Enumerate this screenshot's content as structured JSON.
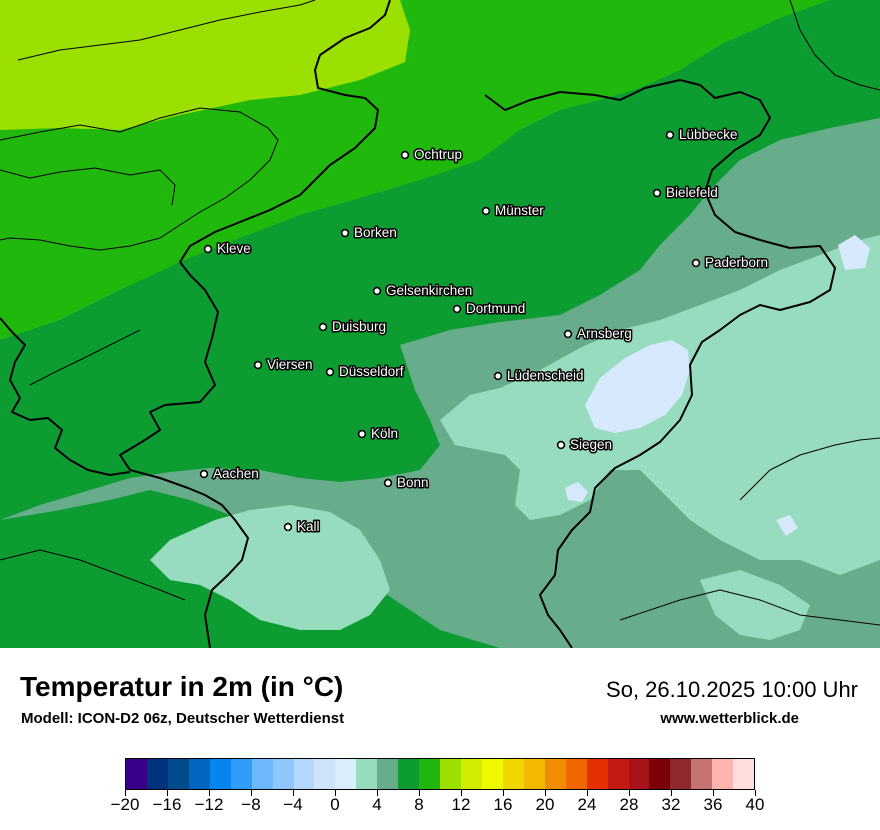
{
  "map": {
    "cities": [
      {
        "name": "Lübbecke"
      },
      {
        "name": "Ochtrup"
      },
      {
        "name": "Bielefeld"
      },
      {
        "name": "Münster"
      },
      {
        "name": "Borken"
      },
      {
        "name": "Kleve"
      },
      {
        "name": "Paderborn"
      },
      {
        "name": "Gelsenkirchen"
      },
      {
        "name": "Dortmund"
      },
      {
        "name": "Duisburg"
      },
      {
        "name": "Arnsberg"
      },
      {
        "name": "Viersen"
      },
      {
        "name": "Düsseldorf"
      },
      {
        "name": "Lüdenscheid"
      },
      {
        "name": "Köln"
      },
      {
        "name": "Siegen"
      },
      {
        "name": "Aachen"
      },
      {
        "name": "Bonn"
      },
      {
        "name": "Kall"
      }
    ],
    "colors": {
      "t_2_4": "#98dcbf",
      "t_4_6": "#68ad8b",
      "t_6_8": "#0c9c32",
      "t_8_10": "#21b80e",
      "t_10_12": "#9be000",
      "t_0_2": "#d6e9fd",
      "border": "#000000"
    }
  },
  "footer": {
    "title": "Temperatur in 2m (in °C)",
    "model": "Modell: ICON-D2 06z, Deutscher Wetterdienst",
    "valid_time": "So, 26.10.2025 10:00 Uhr",
    "website": "www.wetterblick.de"
  },
  "legend": {
    "labels": [
      "−20",
      "−16",
      "−12",
      "−8",
      "−4",
      "0",
      "4",
      "8",
      "12",
      "16",
      "20",
      "24",
      "28",
      "32",
      "36",
      "40"
    ],
    "colors": [
      "#3a0089",
      "#00337d",
      "#004a8e",
      "#0066c0",
      "#0684f0",
      "#2e9cf8",
      "#6cb8fb",
      "#8ec7fc",
      "#b3d8fc",
      "#cde3fc",
      "#dbecfd",
      "#98dcbf",
      "#68ad8b",
      "#0c9c32",
      "#21b80e",
      "#9be000",
      "#d2ec00",
      "#eef900",
      "#f1d700",
      "#f2b900",
      "#f28c00",
      "#f06700",
      "#e43000",
      "#c31b14",
      "#a8131b",
      "#7c0007",
      "#8e2a2d",
      "#c47272",
      "#ffb4b0",
      "#ffdede"
    ]
  }
}
